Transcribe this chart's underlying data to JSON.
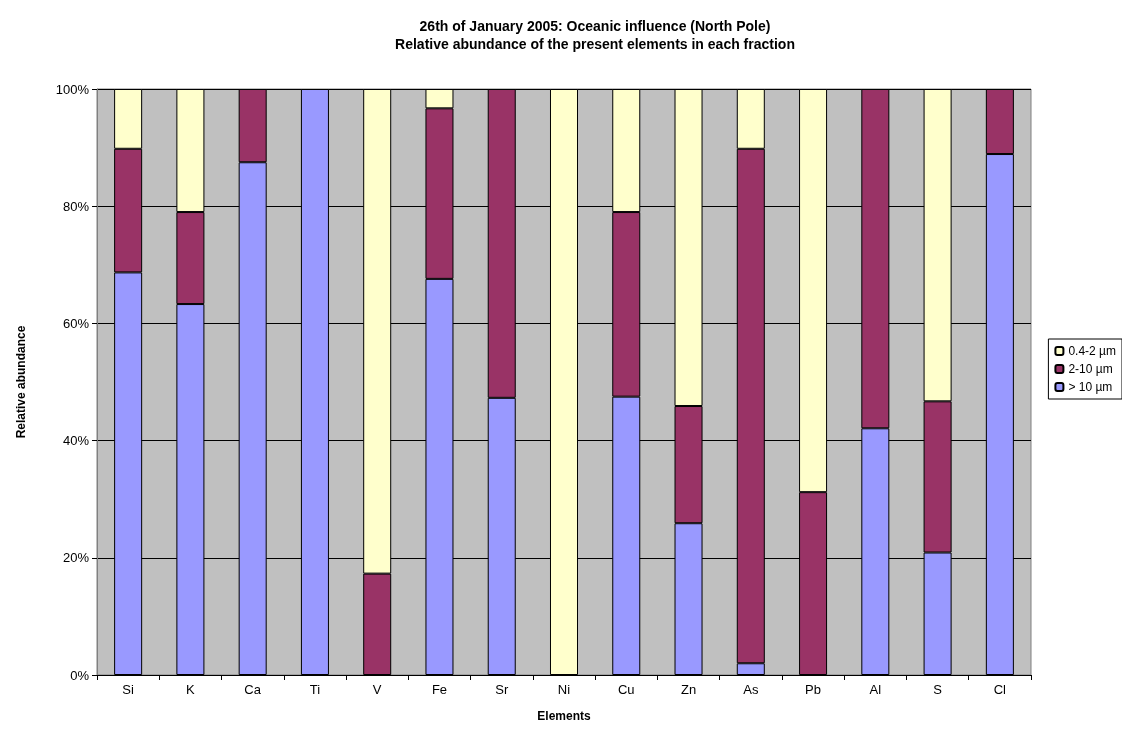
{
  "chart_data": {
    "type": "bar",
    "stacked": true,
    "title": "26th of January 2005: Oceanic influence (North Pole)\nRelative abundance of the present elements in each fraction",
    "xlabel": "Elements",
    "ylabel": "Relative abundance",
    "categories": [
      "Si",
      "K",
      "Ca",
      "Ti",
      "V",
      "Fe",
      "Sr",
      "Ni",
      "Cu",
      "Zn",
      "As",
      "Pb",
      "Al",
      "S",
      "Cl"
    ],
    "series": [
      {
        "name": "> 10 µm",
        "color": "#9999ff",
        "values": [
          68.7,
          63.3,
          87.5,
          100,
          0,
          67.6,
          47.3,
          0,
          47.5,
          25.9,
          2.0,
          0,
          42.1,
          20.9,
          88.9
        ]
      },
      {
        "name": "2-10 µm",
        "color": "#993366",
        "values": [
          21.1,
          15.7,
          12.5,
          0,
          17.3,
          29.1,
          52.7,
          0,
          31.5,
          20.0,
          87.8,
          31.2,
          57.9,
          25.8,
          11.1
        ]
      },
      {
        "name": "0.4-2 µm",
        "color": "#ffffcc",
        "values": [
          10.2,
          21.0,
          0,
          0,
          82.7,
          3.3,
          0,
          100,
          21.0,
          54.1,
          10.2,
          68.8,
          0,
          53.3,
          0
        ]
      }
    ],
    "ylim": [
      0,
      100
    ],
    "yticks": [
      {
        "value": 0,
        "label": "0%"
      },
      {
        "value": 20,
        "label": "20%"
      },
      {
        "value": 40,
        "label": "40%"
      },
      {
        "value": 60,
        "label": "60%"
      },
      {
        "value": 80,
        "label": "80%"
      },
      {
        "value": 100,
        "label": "100%"
      }
    ],
    "grid": "y",
    "legend": "right"
  }
}
